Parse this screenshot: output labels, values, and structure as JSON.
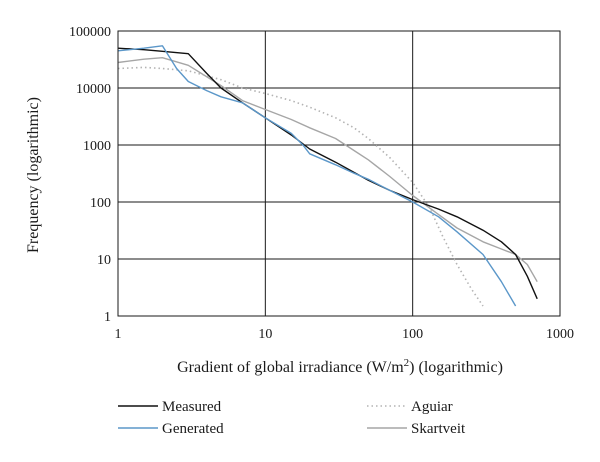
{
  "chart_data": {
    "type": "line",
    "xlabel": "Gradient of global irradiance (W/m²) (logarithmic)",
    "xlabel_parts": {
      "before_sup": "Gradient of global irradiance (W/m",
      "sup": "2",
      "after_sup": ") (logarithmic)"
    },
    "ylabel": "Frequency (logarithmic)",
    "x_scale": "log",
    "y_scale": "log",
    "xlim": [
      1,
      1000
    ],
    "ylim": [
      1,
      100000
    ],
    "x_ticks": [
      "1",
      "10",
      "100",
      "1000"
    ],
    "y_ticks": [
      "1",
      "10",
      "100",
      "1000",
      "10000",
      "100000"
    ],
    "grid": true,
    "legend_position": "bottom",
    "series": [
      {
        "name": "Measured",
        "color": "#111111",
        "style": "solid",
        "x": [
          1,
          1.5,
          2,
          3,
          4,
          5,
          7,
          10,
          15,
          20,
          30,
          40,
          50,
          70,
          100,
          150,
          200,
          300,
          400,
          500,
          600,
          700
        ],
        "y": [
          50000,
          47000,
          44000,
          40000,
          18000,
          10000,
          5500,
          3000,
          1500,
          850,
          500,
          330,
          240,
          160,
          110,
          75,
          55,
          32,
          20,
          12,
          5,
          2
        ]
      },
      {
        "name": "Generated",
        "color": "#5b97c9",
        "style": "solid",
        "x": [
          1,
          1.5,
          2,
          2.5,
          3,
          4,
          5,
          7,
          10,
          15,
          18,
          20,
          30,
          40,
          50,
          70,
          100,
          150,
          200,
          300,
          400,
          500
        ],
        "y": [
          45000,
          50000,
          55000,
          22000,
          13000,
          9000,
          7000,
          5500,
          3000,
          1600,
          1000,
          700,
          450,
          320,
          250,
          160,
          100,
          55,
          30,
          12,
          4,
          1.5
        ]
      },
      {
        "name": "Aguiar",
        "color": "#b3b3b3",
        "style": "dotted",
        "x": [
          1,
          1.5,
          2,
          3,
          5,
          7,
          10,
          15,
          20,
          30,
          40,
          50,
          70,
          100,
          130,
          160,
          200,
          250,
          300
        ],
        "y": [
          22000,
          23000,
          22000,
          20000,
          14000,
          10000,
          8000,
          6000,
          4600,
          3000,
          2000,
          1300,
          600,
          220,
          80,
          25,
          8,
          3,
          1.5
        ]
      },
      {
        "name": "Skartveit",
        "color": "#a6a6a6",
        "style": "solid",
        "x": [
          1,
          1.5,
          2,
          3,
          5,
          7,
          10,
          15,
          20,
          30,
          40,
          50,
          70,
          100,
          150,
          200,
          300,
          400,
          500,
          600,
          700
        ],
        "y": [
          28000,
          32000,
          34000,
          25000,
          11000,
          6000,
          4200,
          2800,
          2000,
          1300,
          800,
          550,
          280,
          130,
          60,
          35,
          20,
          15,
          12,
          8,
          4
        ]
      }
    ]
  }
}
